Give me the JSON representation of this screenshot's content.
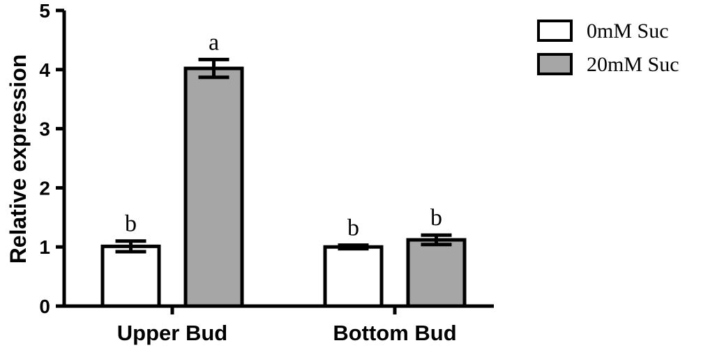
{
  "chart_data": {
    "type": "bar",
    "title": "",
    "xlabel": "",
    "ylabel": "Relative expression",
    "ylim": [
      0,
      5
    ],
    "yticks": [
      "0",
      "1",
      "2",
      "3",
      "4",
      "5"
    ],
    "categories": [
      "Upper Bud",
      "Bottom Bud"
    ],
    "series": [
      {
        "name": "0mM Suc",
        "color": "#ffffff",
        "values": [
          1.01,
          1.0
        ],
        "errors": [
          0.09,
          0.03
        ],
        "labels": [
          "b",
          "b"
        ]
      },
      {
        "name": "20mM Suc",
        "color": "#a6a6a6",
        "values": [
          4.02,
          1.12
        ],
        "errors": [
          0.15,
          0.08
        ],
        "labels": [
          "a",
          "b"
        ]
      }
    ],
    "grid": false,
    "legend": "top-right"
  }
}
